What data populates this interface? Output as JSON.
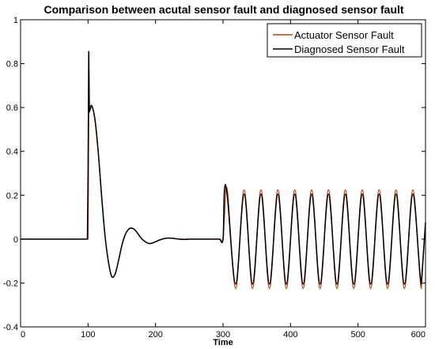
{
  "chart_data": {
    "type": "line",
    "title": "Comparison between acutal sensor fault and diagnosed sensor fault",
    "xlabel": "Time",
    "ylabel": "",
    "xlim": [
      0,
      600
    ],
    "ylim": [
      -0.4,
      1.0
    ],
    "xticks": [
      "0",
      "100",
      "200",
      "300",
      "400",
      "500",
      "600"
    ],
    "yticks": [
      "-0.4",
      "-0.2",
      "0",
      "0.2",
      "0.4",
      "0.6",
      "0.8",
      "1"
    ],
    "grid": false,
    "legend_position": "top-right",
    "series": [
      {
        "name": "Actuator Sensor Fault",
        "color": "#b5441f",
        "x": [
          0,
          100,
          101,
          105,
          110,
          115,
          120,
          125,
          130,
          135,
          140,
          145,
          150,
          155,
          160,
          165,
          170,
          175,
          180,
          185,
          190,
          195,
          200,
          205,
          210,
          215,
          220,
          225,
          230,
          235,
          240,
          245,
          250,
          255,
          260,
          265,
          270,
          275,
          280,
          285,
          290,
          295,
          300,
          302,
          306.25,
          318.75,
          331.25,
          343.75,
          356.25,
          368.75,
          381.25,
          393.75,
          406.25,
          418.75,
          431.25,
          443.75,
          456.25,
          468.75,
          481.25,
          493.75,
          506.25,
          518.75,
          531.25,
          543.75,
          556.25,
          568.75,
          581.25,
          593.75,
          600
        ],
        "y": [
          0,
          0,
          0.6,
          0.61,
          0.55,
          0.4,
          0.2,
          0.02,
          -0.1,
          -0.17,
          -0.16,
          -0.1,
          -0.03,
          0.02,
          0.045,
          0.05,
          0.04,
          0.02,
          0.0,
          -0.012,
          -0.02,
          -0.018,
          -0.012,
          -0.005,
          0.0,
          0.004,
          0.005,
          0.004,
          0.002,
          0.0,
          -0.001,
          -0.001,
          0.0,
          0.0,
          0.0,
          0.0,
          0.0,
          0.0,
          0.0,
          0.0,
          0.0,
          0.0,
          0.0,
          0.1,
          0.225,
          -0.225,
          0.225,
          -0.225,
          0.225,
          -0.225,
          0.225,
          -0.225,
          0.225,
          -0.225,
          0.225,
          -0.225,
          0.225,
          -0.225,
          0.225,
          -0.225,
          0.225,
          -0.225,
          0.225,
          -0.225,
          0.225,
          -0.225,
          0.225,
          -0.225,
          0.08
        ]
      },
      {
        "name": "Diagnosed Sensor Fault",
        "color": "#000000",
        "x": [
          0,
          99,
          100,
          101,
          102,
          105,
          110,
          115,
          120,
          125,
          130,
          135,
          140,
          145,
          150,
          155,
          160,
          165,
          170,
          175,
          180,
          185,
          190,
          195,
          200,
          205,
          210,
          215,
          220,
          225,
          230,
          235,
          240,
          245,
          250,
          255,
          260,
          265,
          270,
          275,
          280,
          285,
          290,
          295,
          300,
          302,
          306.25,
          318.75,
          331.25,
          343.75,
          356.25,
          368.75,
          381.25,
          393.75,
          406.25,
          418.75,
          431.25,
          443.75,
          456.25,
          468.75,
          481.25,
          493.75,
          506.25,
          518.75,
          531.25,
          543.75,
          556.25,
          568.75,
          581.25,
          593.75,
          600
        ],
        "y": [
          0,
          0,
          0.3,
          0.855,
          0.58,
          0.61,
          0.55,
          0.4,
          0.2,
          0.02,
          -0.1,
          -0.17,
          -0.16,
          -0.1,
          -0.03,
          0.02,
          0.045,
          0.05,
          0.04,
          0.02,
          0.0,
          -0.012,
          -0.02,
          -0.018,
          -0.012,
          -0.005,
          0.0,
          0.004,
          0.005,
          0.004,
          0.002,
          0.0,
          -0.001,
          -0.001,
          0.0,
          0.0,
          0.0,
          0.0,
          0.0,
          0.0,
          0.0,
          0.0,
          0.0,
          0.0,
          0.0,
          0.22,
          0.2,
          -0.205,
          0.205,
          -0.205,
          0.205,
          -0.205,
          0.205,
          -0.205,
          0.205,
          -0.205,
          0.205,
          -0.205,
          0.205,
          -0.205,
          0.205,
          -0.205,
          0.205,
          -0.205,
          0.205,
          -0.205,
          0.205,
          -0.205,
          0.205,
          -0.205,
          0.075
        ]
      }
    ]
  }
}
